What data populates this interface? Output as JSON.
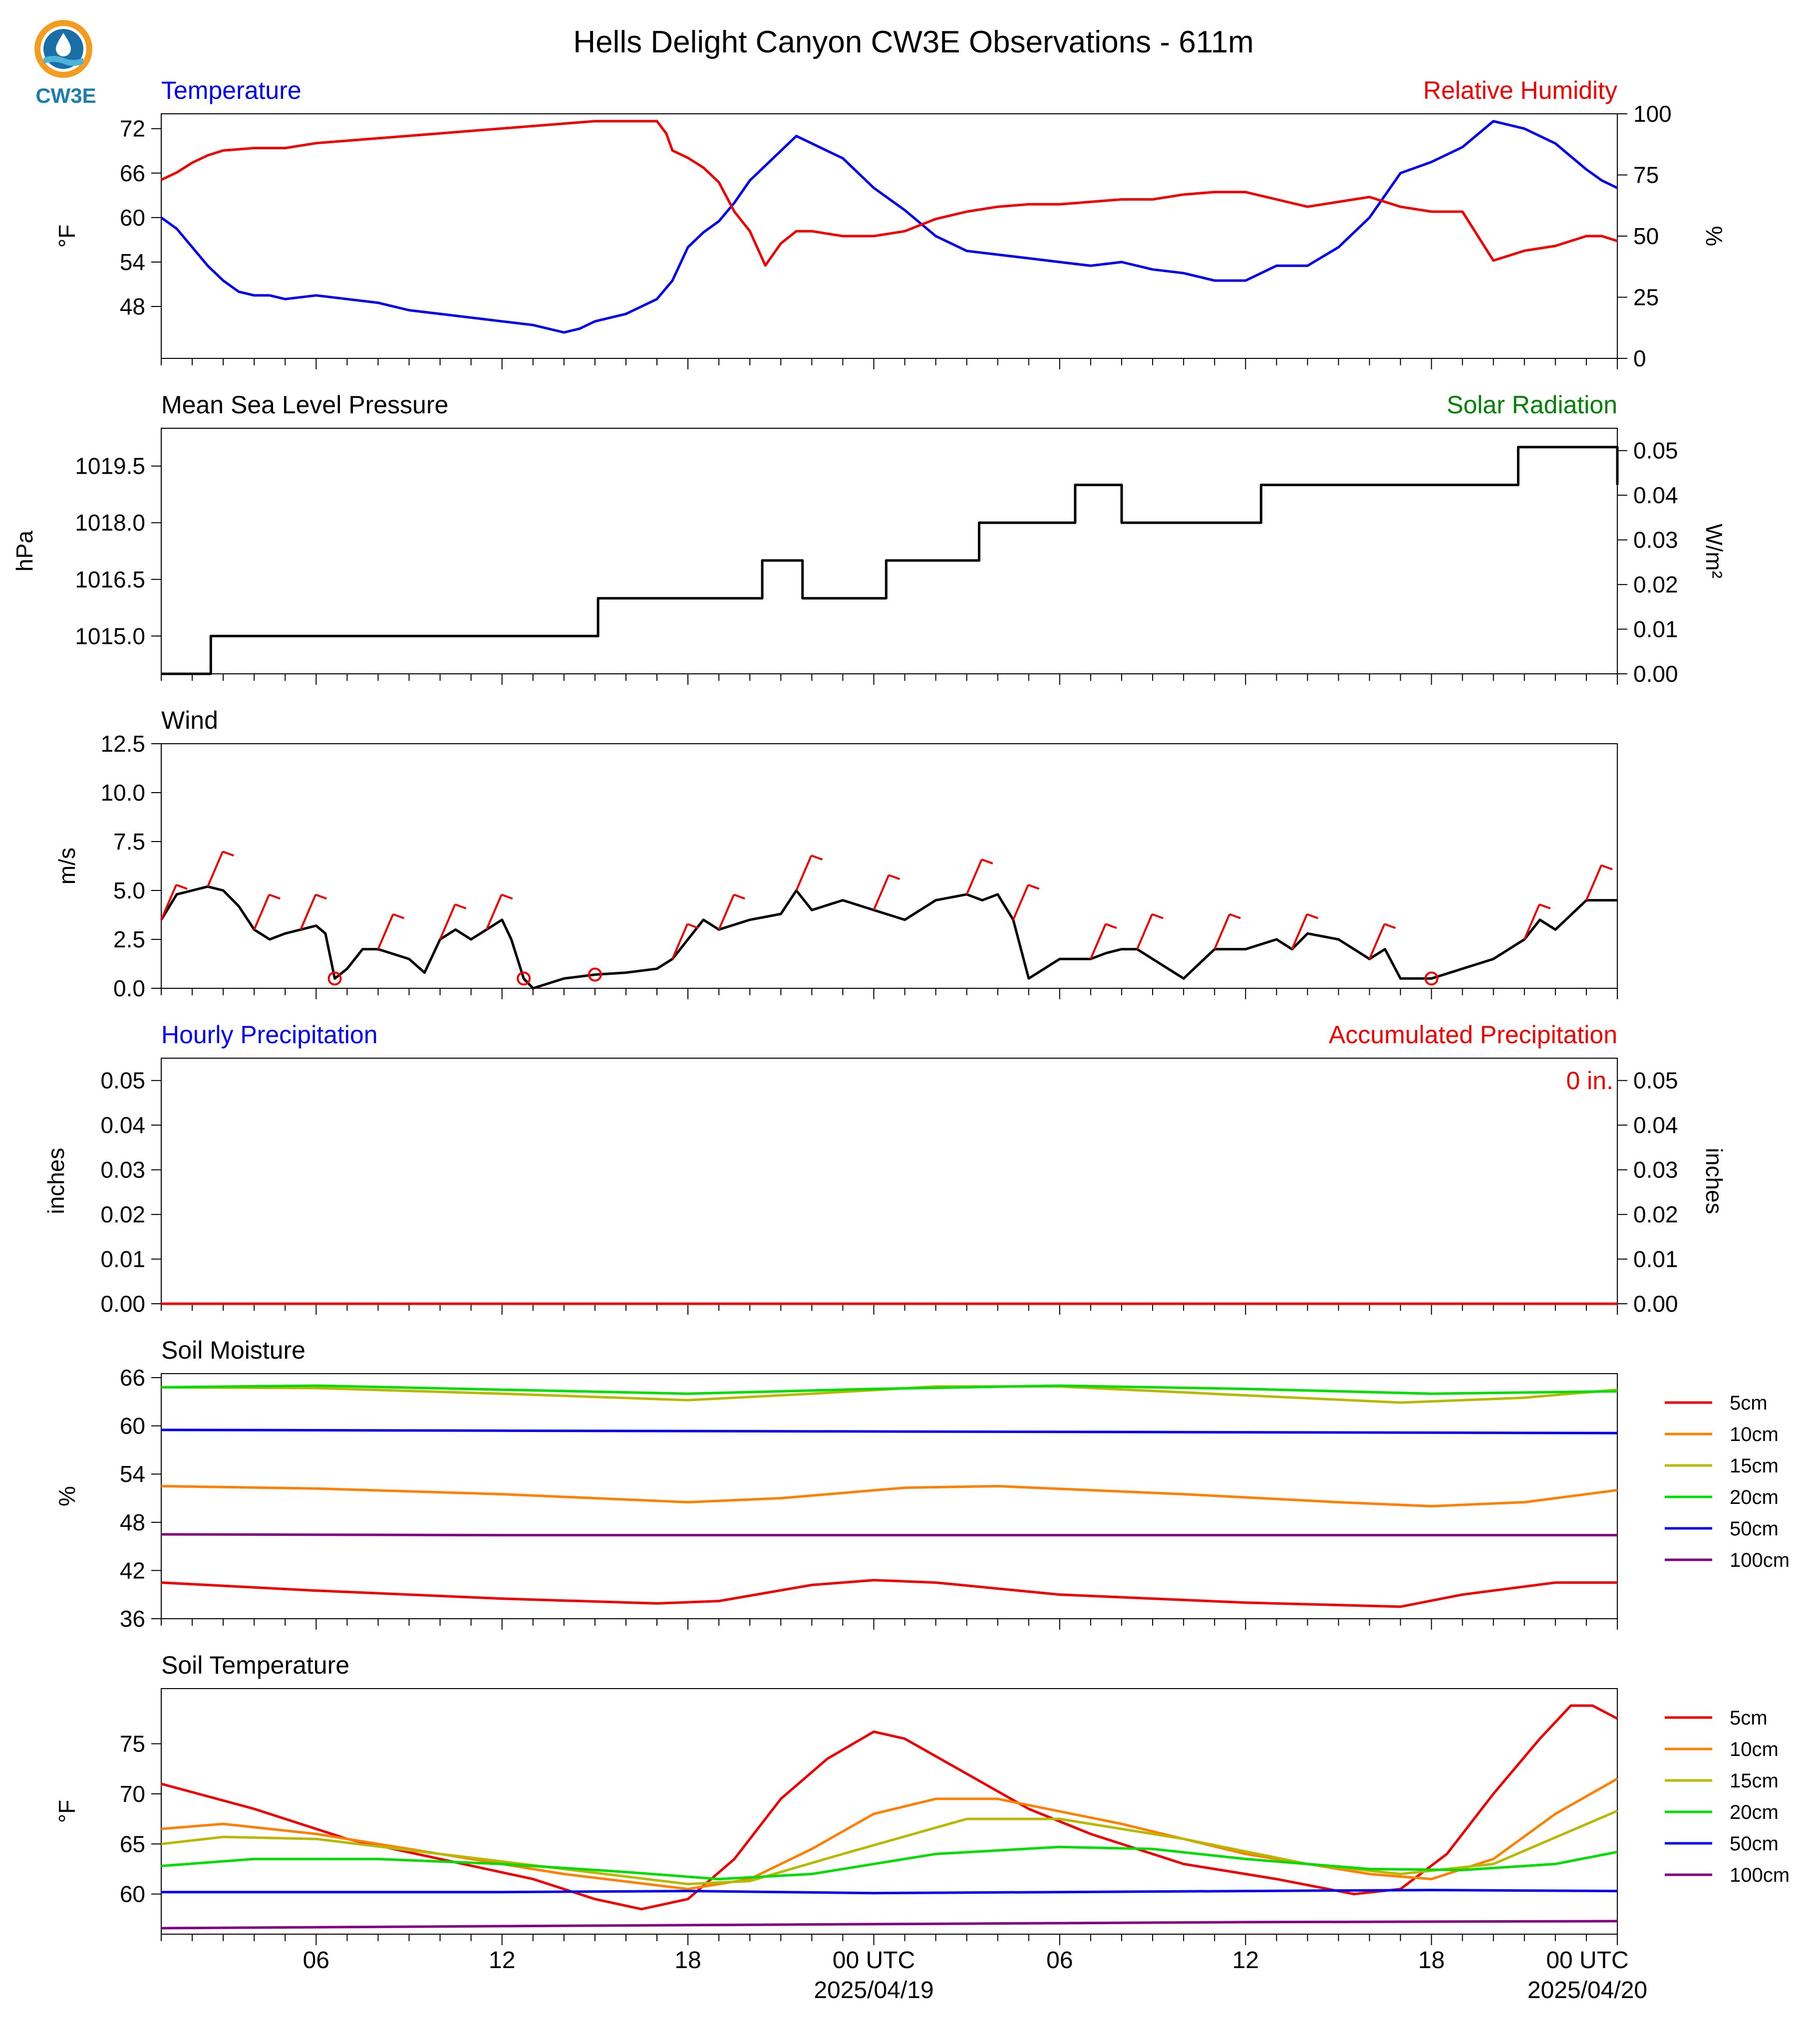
{
  "title": "Hells Delight Canyon CW3E Observations - 611m",
  "logo_text": "CW3E",
  "time_axis": {
    "tick_labels": [
      "06",
      "12",
      "18",
      "00 UTC",
      "06",
      "12",
      "18",
      "00 UTC"
    ],
    "date_labels": [
      "2025/04/19",
      "2025/04/20"
    ]
  },
  "chart_data": [
    {
      "id": "temp_rh",
      "type": "line",
      "title_left": "Temperature",
      "title_right": "Relative Humidity",
      "ylabel_left": "°F",
      "ylabel_right": "%",
      "ylim_left": [
        41,
        74
      ],
      "yticks_left": [
        48,
        54,
        60,
        66,
        72
      ],
      "ylim_right": [
        0,
        100
      ],
      "yticks_right": [
        0,
        25,
        50,
        75,
        100
      ],
      "colors": {
        "left": "#0000ee",
        "right": "#ee0000"
      },
      "series": [
        {
          "name": "Temperature",
          "axis": "left",
          "color": "#0000ee",
          "x": [
            1,
            1.5,
            2,
            2.5,
            3,
            3.5,
            4,
            4.5,
            5,
            6,
            7,
            8,
            9,
            10,
            11,
            12,
            13,
            14,
            14.5,
            15,
            16,
            17,
            17.5,
            18,
            18.5,
            19,
            19.5,
            20,
            21,
            21.5,
            22,
            23,
            24,
            25,
            26,
            27,
            28,
            29,
            30,
            31,
            32,
            33,
            34,
            35,
            36,
            36.5,
            37,
            38,
            39,
            40,
            41,
            42,
            43,
            44,
            45,
            46,
            47,
            47.5,
            48
          ],
          "y": [
            60,
            58.5,
            56,
            53.5,
            51.5,
            50,
            49.5,
            49.5,
            49,
            49.5,
            49,
            48.5,
            47.5,
            47,
            46.5,
            46,
            45.5,
            44.5,
            45,
            46,
            47,
            49,
            51.5,
            56,
            58,
            59.5,
            62,
            65,
            69,
            71,
            70,
            68,
            64,
            61,
            57.5,
            55.5,
            55,
            54.5,
            54,
            53.5,
            54,
            53,
            52.5,
            51.5,
            51.5,
            52.5,
            53.5,
            53.5,
            56,
            60,
            66,
            67.5,
            69.5,
            73,
            72,
            70,
            66.5,
            65,
            64
          ]
        },
        {
          "name": "Relative Humidity",
          "axis": "right",
          "color": "#ee0000",
          "x": [
            1,
            1.5,
            2,
            2.5,
            3,
            4,
            5,
            6,
            7,
            8,
            9,
            10,
            11,
            12,
            13,
            14,
            15,
            16,
            17,
            17.3,
            17.5,
            18,
            18.5,
            19,
            19.5,
            20,
            20.5,
            21,
            21.5,
            22,
            23,
            24,
            25,
            26,
            27,
            28,
            29,
            30,
            31,
            32,
            33,
            34,
            35,
            36,
            37,
            38,
            39,
            40,
            41,
            42,
            43,
            44,
            45,
            46,
            47,
            47.5,
            48
          ],
          "y": [
            73,
            76,
            80,
            83,
            85,
            86,
            86,
            88,
            89,
            90,
            91,
            92,
            93,
            94,
            95,
            96,
            97,
            97,
            97,
            92,
            85,
            82,
            78,
            72,
            60,
            52,
            38,
            47,
            52,
            52,
            50,
            50,
            52,
            57,
            60,
            62,
            63,
            63,
            64,
            65,
            65,
            67,
            68,
            68,
            65,
            62,
            64,
            66,
            62,
            60,
            60,
            40,
            44,
            46,
            50,
            50,
            48
          ]
        }
      ]
    },
    {
      "id": "pressure",
      "type": "line",
      "title_left": "Mean Sea Level Pressure",
      "title_right": "Solar Radiation",
      "ylabel_left": "hPa",
      "ylabel_right": "W/m²",
      "ylim_left": [
        1014.0,
        1020.5
      ],
      "yticks_left": [
        1015.0,
        1016.5,
        1018.0,
        1019.5
      ],
      "ylim_right": [
        0,
        0.055
      ],
      "yticks_right": [
        0.0,
        0.01,
        0.02,
        0.03,
        0.04,
        0.05
      ],
      "colors": {
        "left": "#000000",
        "right": "#008000"
      },
      "series": [
        {
          "name": "Mean Sea Level Pressure",
          "axis": "left",
          "color": "#000000",
          "step": true,
          "x": [
            1,
            2.6,
            13.6,
            15.1,
            20.4,
            21.7,
            24.4,
            27.4,
            30.5,
            32.0,
            35.2,
            36.5,
            44.8,
            48
          ],
          "y": [
            1014.0,
            1015.0,
            1015.0,
            1016.0,
            1017.0,
            1016.0,
            1017.0,
            1018.0,
            1019.0,
            1018.0,
            1018.0,
            1019.0,
            1020.0,
            1019.0
          ]
        }
      ]
    },
    {
      "id": "wind",
      "type": "line",
      "title_left": "Wind",
      "ylabel_left": "m/s",
      "ylim_left": [
        0,
        12.5
      ],
      "yticks_left": [
        0.0,
        2.5,
        5.0,
        7.5,
        10.0,
        12.5
      ],
      "colors": {
        "speed": "#000000",
        "barbs": "#ee0000"
      },
      "series": [
        {
          "name": "Wind Speed",
          "color": "#000000",
          "x": [
            1,
            1.5,
            2,
            2.5,
            3,
            3.5,
            4,
            4.5,
            5,
            5.5,
            6,
            6.3,
            6.6,
            7,
            7.5,
            8,
            9,
            9.5,
            10,
            10.5,
            11,
            11.5,
            12,
            12.3,
            12.7,
            13,
            14,
            15,
            16,
            17,
            17.5,
            18,
            18.5,
            19,
            20,
            21,
            21.5,
            22,
            23,
            24,
            25,
            26,
            27,
            27.5,
            28,
            28.5,
            29,
            30,
            31,
            31.5,
            32,
            32.5,
            33,
            34,
            35,
            36,
            37,
            37.5,
            38,
            39,
            40,
            40.5,
            41,
            42,
            43,
            44,
            45,
            45.5,
            46,
            47,
            48
          ],
          "y": [
            3.5,
            4.8,
            5.0,
            5.2,
            5.0,
            4.2,
            3.0,
            2.5,
            2.8,
            3.0,
            3.2,
            2.8,
            0.5,
            1.0,
            2.0,
            2.0,
            1.5,
            0.8,
            2.5,
            3.0,
            2.5,
            3.0,
            3.5,
            2.5,
            0.5,
            0.0,
            0.5,
            0.7,
            0.8,
            1.0,
            1.5,
            2.5,
            3.5,
            3.0,
            3.5,
            3.8,
            5.0,
            4.0,
            4.5,
            4.0,
            3.5,
            4.5,
            4.8,
            4.5,
            4.8,
            3.5,
            0.5,
            1.5,
            1.5,
            1.8,
            2.0,
            2.0,
            1.5,
            0.5,
            2.0,
            2.0,
            2.5,
            2.0,
            2.8,
            2.5,
            1.5,
            2.0,
            0.5,
            0.5,
            1.0,
            1.5,
            2.5,
            3.5,
            3.0,
            4.5,
            4.5
          ]
        }
      ]
    },
    {
      "id": "precip",
      "type": "line",
      "title_left": "Hourly Precipitation",
      "title_right": "Accumulated Precipitation",
      "annotation": "0 in.",
      "ylabel_left": "inches",
      "ylabel_right": "inches",
      "ylim_left": [
        0,
        0.055
      ],
      "yticks_left": [
        0.0,
        0.01,
        0.02,
        0.03,
        0.04,
        0.05
      ],
      "ylim_right": [
        0,
        0.055
      ],
      "yticks_right": [
        0.0,
        0.01,
        0.02,
        0.03,
        0.04,
        0.05
      ],
      "colors": {
        "left": "#0000ee",
        "right": "#ee0000"
      },
      "series": [
        {
          "name": "Accumulated Precipitation",
          "axis": "right",
          "color": "#ee0000",
          "x": [
            1,
            48
          ],
          "y": [
            0,
            0
          ]
        }
      ]
    },
    {
      "id": "soil_moisture",
      "type": "line",
      "title_left": "Soil Moisture",
      "ylabel_left": "%",
      "ylim_left": [
        36,
        66.5
      ],
      "yticks_left": [
        36,
        42,
        48,
        54,
        60,
        66
      ],
      "legend": "right",
      "series": [
        {
          "name": "5cm",
          "color": "#ee0000",
          "x": [
            1,
            6,
            12,
            17,
            19,
            22,
            24,
            26,
            30,
            36,
            41,
            43,
            46,
            48
          ],
          "y": [
            40.5,
            39.5,
            38.5,
            37.9,
            38.2,
            40.2,
            40.8,
            40.5,
            39.0,
            38.0,
            37.5,
            39.0,
            40.5,
            40.5
          ]
        },
        {
          "name": "10cm",
          "color": "#ff8000",
          "x": [
            1,
            6,
            12,
            18,
            21,
            25,
            28,
            34,
            39,
            42,
            45,
            48
          ],
          "y": [
            52.5,
            52.2,
            51.5,
            50.5,
            51.0,
            52.3,
            52.5,
            51.5,
            50.5,
            50.0,
            50.5,
            52.0
          ]
        },
        {
          "name": "15cm",
          "color": "#b8b800",
          "x": [
            1,
            6,
            12,
            18,
            22,
            26,
            30,
            36,
            41,
            45,
            48
          ],
          "y": [
            64.8,
            64.7,
            64.0,
            63.2,
            64.0,
            64.9,
            64.9,
            63.8,
            62.9,
            63.5,
            64.5
          ]
        },
        {
          "name": "20cm",
          "color": "#00dd00",
          "x": [
            1,
            6,
            12,
            18,
            24,
            30,
            36,
            42,
            48
          ],
          "y": [
            64.8,
            65.0,
            64.5,
            64.0,
            64.6,
            65.0,
            64.6,
            64.0,
            64.3
          ]
        },
        {
          "name": "50cm",
          "color": "#0000ee",
          "x": [
            1,
            12,
            24,
            36,
            48
          ],
          "y": [
            59.5,
            59.4,
            59.3,
            59.2,
            59.1
          ]
        },
        {
          "name": "100cm",
          "color": "#800080",
          "x": [
            1,
            12,
            24,
            36,
            48
          ],
          "y": [
            46.5,
            46.4,
            46.4,
            46.4,
            46.4
          ]
        }
      ]
    },
    {
      "id": "soil_temp",
      "type": "line",
      "title_left": "Soil Temperature",
      "ylabel_left": "°F",
      "ylim_left": [
        56,
        80.5
      ],
      "yticks_left": [
        60,
        65,
        70,
        75
      ],
      "legend": "right",
      "series": [
        {
          "name": "5cm",
          "color": "#ee0000",
          "x": [
            1,
            4,
            7,
            10,
            13,
            15,
            16.5,
            18,
            19.5,
            21,
            22.5,
            24,
            25,
            27,
            29,
            31,
            34,
            37,
            39.5,
            41,
            42.5,
            44,
            45.5,
            46.5,
            47.2,
            48
          ],
          "y": [
            71,
            68.5,
            65.5,
            63.5,
            61.5,
            59.5,
            58.5,
            59.5,
            63.5,
            69.5,
            73.5,
            76.2,
            75.5,
            72,
            68.5,
            66,
            63,
            61.5,
            60,
            60.5,
            64,
            70,
            75.5,
            78.8,
            78.8,
            77.5
          ]
        },
        {
          "name": "10cm",
          "color": "#ff8000",
          "x": [
            1,
            3,
            6,
            10,
            14,
            18,
            20,
            22,
            24,
            26,
            28,
            32,
            36,
            40,
            42,
            44,
            46,
            48
          ],
          "y": [
            66.5,
            67,
            66,
            64,
            62,
            60.5,
            61.5,
            64.5,
            68,
            69.5,
            69.5,
            67,
            64,
            62,
            61.5,
            63.5,
            68,
            71.5
          ]
        },
        {
          "name": "15cm",
          "color": "#b8b800",
          "x": [
            1,
            3,
            6,
            10,
            14,
            18,
            20,
            23,
            27,
            30,
            34,
            38,
            41,
            44,
            48
          ],
          "y": [
            65,
            65.7,
            65.5,
            64,
            62.5,
            61,
            61.3,
            64,
            67.5,
            67.5,
            65.5,
            63,
            62,
            63,
            68.3
          ]
        },
        {
          "name": "20cm",
          "color": "#00dd00",
          "x": [
            1,
            4,
            8,
            12,
            16,
            19,
            22,
            26,
            30,
            33,
            36,
            40,
            43,
            46,
            48
          ],
          "y": [
            62.8,
            63.5,
            63.5,
            63,
            62.2,
            61.5,
            62,
            64,
            64.7,
            64.5,
            63.5,
            62.5,
            62.4,
            63,
            64.2
          ]
        },
        {
          "name": "50cm",
          "color": "#0000ee",
          "x": [
            1,
            12,
            18,
            24,
            30,
            36,
            42,
            48
          ],
          "y": [
            60.2,
            60.2,
            60.3,
            60.1,
            60.2,
            60.3,
            60.4,
            60.3
          ]
        },
        {
          "name": "100cm",
          "color": "#800080",
          "x": [
            1,
            12,
            24,
            36,
            48
          ],
          "y": [
            56.6,
            56.8,
            57.0,
            57.2,
            57.3
          ]
        }
      ]
    }
  ]
}
